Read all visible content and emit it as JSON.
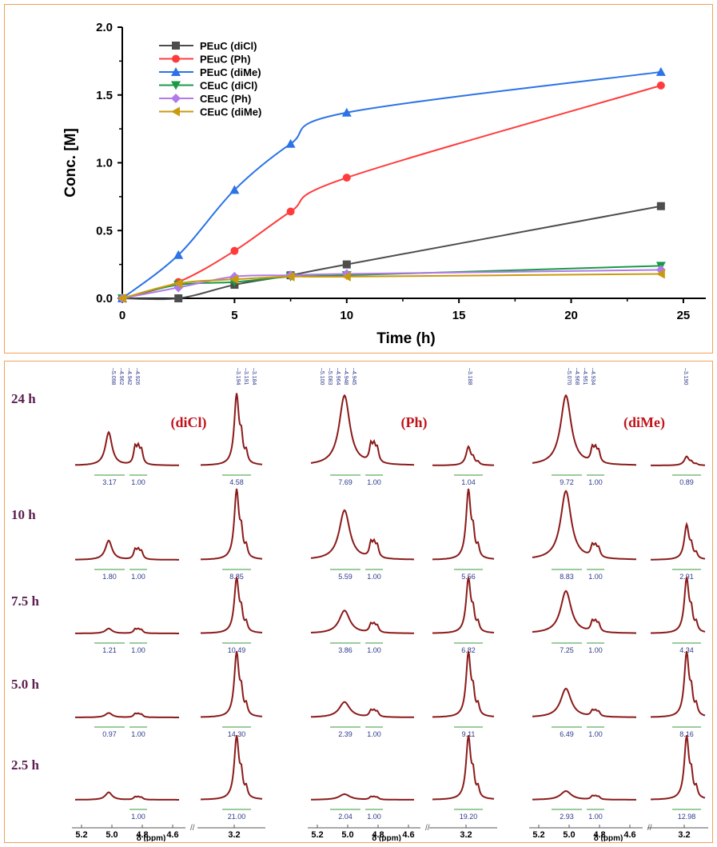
{
  "chart_data": [
    {
      "type": "line",
      "xlabel": "Time (h)",
      "ylabel": "Conc. [M]",
      "xlim": [
        0,
        26
      ],
      "ylim": [
        0,
        2.0
      ],
      "xticks": [
        "0",
        "5",
        "10",
        "15",
        "20",
        "25"
      ],
      "yticks": [
        "0.0",
        "0.5",
        "1.0",
        "1.5",
        "2.0"
      ],
      "legend_position": "top-left",
      "grid": false,
      "x": [
        0,
        2.5,
        5,
        7.5,
        10,
        24
      ],
      "series": [
        {
          "name": "PEuC (diCl)",
          "color": "#4d4d4d",
          "marker": "square",
          "values": [
            0.0,
            0.0,
            0.1,
            0.17,
            0.25,
            0.68
          ]
        },
        {
          "name": "PEuC (Ph)",
          "color": "#ff3b3b",
          "marker": "circle",
          "values": [
            0.0,
            0.12,
            0.35,
            0.64,
            0.89,
            1.57
          ]
        },
        {
          "name": "PEuC (diMe)",
          "color": "#2b73e6",
          "marker": "triangle-up",
          "values": [
            0.0,
            0.32,
            0.8,
            1.14,
            1.37,
            1.67
          ]
        },
        {
          "name": "CEuC (diCl)",
          "color": "#1a9a46",
          "marker": "triangle-down",
          "values": [
            0.0,
            0.1,
            0.12,
            0.16,
            0.17,
            0.24
          ]
        },
        {
          "name": "CEuC (Ph)",
          "color": "#b07ae8",
          "marker": "diamond",
          "values": [
            0.0,
            0.08,
            0.16,
            0.17,
            0.18,
            0.21
          ]
        },
        {
          "name": "CEuC (diMe)",
          "color": "#c99a10",
          "marker": "triangle-left",
          "values": [
            0.0,
            0.11,
            0.14,
            0.16,
            0.16,
            0.18
          ]
        }
      ]
    },
    {
      "type": "nmr-stack",
      "xlabel": "δ (ppm)",
      "xticks_left": [
        "5.2",
        "5.0",
        "4.8",
        "4.6"
      ],
      "xticks_right": [
        "3.2"
      ],
      "line_color": "#8b1a1a",
      "integral_color": "#2e3a8c",
      "times": [
        "24 h",
        "10 h",
        "7.5 h",
        "5.0 h",
        "2.5 h"
      ],
      "samples": [
        {
          "title": "(diCl)",
          "peak_labels_left": [
            "5.098",
            "4.962",
            "4.942",
            "4.926"
          ],
          "peak_labels_right": [
            "3.194",
            "3.191",
            "3.184"
          ],
          "rows": [
            {
              "integrals": [
                "3.17",
                "1.00",
                "4.58"
              ],
              "peak_big": 0.45,
              "peak_small": 0.22,
              "peak_right": 0.95
            },
            {
              "integrals": [
                "1.80",
                "1.00",
                "8.85"
              ],
              "peak_big": 0.28,
              "peak_small": 0.13,
              "peak_right": 1.0
            },
            {
              "integrals": [
                "1.21",
                "1.00",
                "10.49"
              ],
              "peak_big": 0.09,
              "peak_small": 0.07,
              "peak_right": 1.0
            },
            {
              "integrals": [
                "0.97",
                "1.00",
                "14.30"
              ],
              "peak_big": 0.07,
              "peak_small": 0.05,
              "peak_right": 1.0
            },
            {
              "integrals": [
                "",
                "1.00",
                "21.00"
              ],
              "peak_big": 0.12,
              "peak_small": 0.04,
              "peak_right": 1.0
            }
          ]
        },
        {
          "title": "(Ph)",
          "peak_labels_left": [
            "5.100",
            "5.083",
            "4.964",
            "4.948",
            "4.945"
          ],
          "peak_labels_right": [
            "3.188"
          ],
          "rows": [
            {
              "integrals": [
                "7.69",
                "1.00",
                "1.04"
              ],
              "peak_big": 0.95,
              "peak_small": 0.22,
              "peak_right": 0.25
            },
            {
              "integrals": [
                "5.59",
                "1.00",
                "5.56"
              ],
              "peak_big": 0.72,
              "peak_small": 0.2,
              "peak_right": 1.0
            },
            {
              "integrals": [
                "3.86",
                "1.00",
                "6.82"
              ],
              "peak_big": 0.42,
              "peak_small": 0.14,
              "peak_right": 1.0
            },
            {
              "integrals": [
                "2.39",
                "1.00",
                "9.11"
              ],
              "peak_big": 0.24,
              "peak_small": 0.09,
              "peak_right": 1.0
            },
            {
              "integrals": [
                "2.04",
                "1.00",
                "19.20"
              ],
              "peak_big": 0.09,
              "peak_small": 0.04,
              "peak_right": 1.0
            }
          ]
        },
        {
          "title": "(diMe)",
          "peak_labels_left": [
            "5.070",
            "4.968",
            "4.951",
            "4.934"
          ],
          "peak_labels_right": [
            "3.190"
          ],
          "rows": [
            {
              "integrals": [
                "9.72",
                "1.00",
                "0.89"
              ],
              "peak_big": 0.95,
              "peak_small": 0.18,
              "peak_right": 0.12
            },
            {
              "integrals": [
                "8.83",
                "1.00",
                "2.91"
              ],
              "peak_big": 1.0,
              "peak_small": 0.15,
              "peak_right": 0.5
            },
            {
              "integrals": [
                "7.25",
                "1.00",
                "4.34"
              ],
              "peak_big": 0.78,
              "peak_small": 0.17,
              "peak_right": 1.0
            },
            {
              "integrals": [
                "6.49",
                "1.00",
                "8.16"
              ],
              "peak_big": 0.45,
              "peak_small": 0.08,
              "peak_right": 1.0
            },
            {
              "integrals": [
                "2.93",
                "1.00",
                "12.98"
              ],
              "peak_big": 0.14,
              "peak_small": 0.05,
              "peak_right": 1.0
            }
          ]
        }
      ]
    }
  ]
}
